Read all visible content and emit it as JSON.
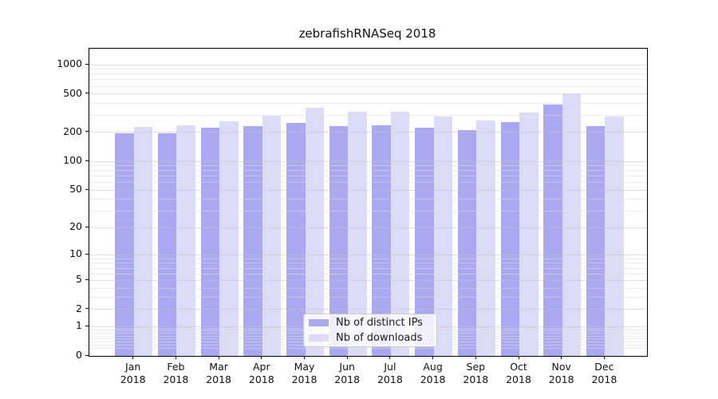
{
  "chart_data": {
    "type": "bar",
    "title": "zebrafishRNASeq 2018",
    "xlabel": "",
    "ylabel": "",
    "x_year": "2018",
    "months": [
      "Jan",
      "Feb",
      "Mar",
      "Apr",
      "May",
      "Jun",
      "Jul",
      "Aug",
      "Sep",
      "Oct",
      "Nov",
      "Dec"
    ],
    "series": [
      {
        "name": "Nb of distinct IPs",
        "color": "#a9a8f1",
        "values": [
          195,
          195,
          226,
          234,
          251,
          233,
          239,
          225,
          212,
          256,
          386,
          233
        ]
      },
      {
        "name": "Nb of downloads",
        "color": "#dddcf8",
        "values": [
          228,
          237,
          262,
          298,
          361,
          326,
          328,
          295,
          268,
          320,
          496,
          291
        ]
      }
    ],
    "yscale": "log1p",
    "ylim": [
      0,
      1465
    ],
    "y_major_ticks": [
      0,
      1,
      2,
      5,
      10,
      20,
      50,
      100,
      200,
      500,
      1000
    ],
    "y_minor_ticks": [
      0.2,
      0.3,
      0.4,
      0.5,
      0.6,
      0.7,
      0.8,
      0.9,
      3,
      4,
      6,
      7,
      8,
      9,
      30,
      40,
      60,
      70,
      80,
      90,
      300,
      400,
      600,
      700,
      800,
      900
    ],
    "grid": true,
    "legend_position": "lower center",
    "colors": {
      "grid_major": "rgba(195,195,195,0.55)",
      "grid_minor": "rgba(222,222,222,0.55)",
      "spine": "#000000",
      "text": "#111111",
      "legend_border": "#cccccc"
    }
  }
}
